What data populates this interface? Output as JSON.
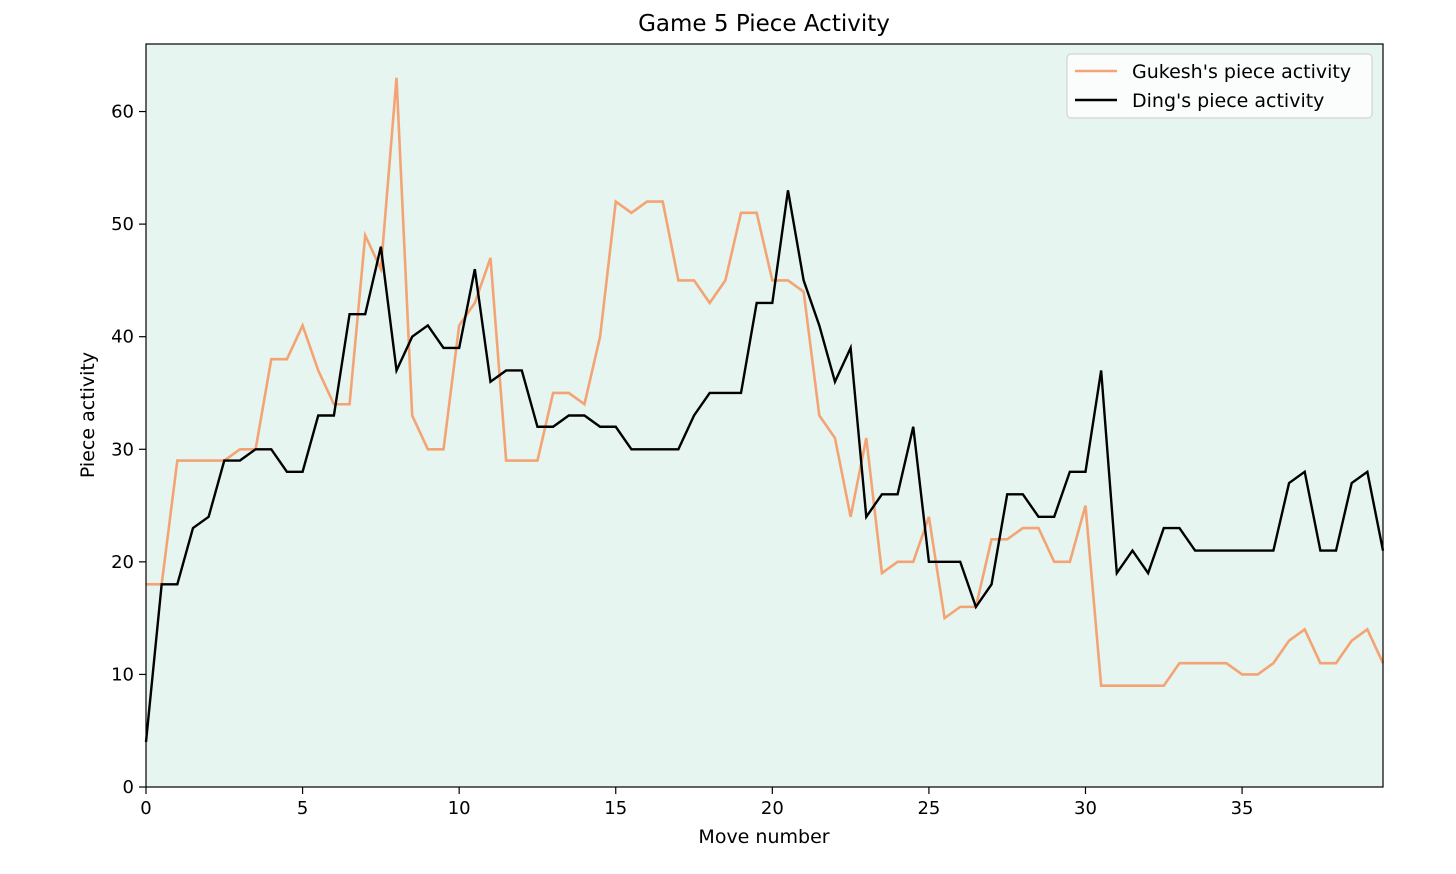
{
  "chart_data": {
    "type": "line",
    "title": "Game 5 Piece Activity",
    "xlabel": "Move number",
    "ylabel": "Piece activity",
    "xlim": [
      0,
      39.5
    ],
    "ylim": [
      0,
      66
    ],
    "xticks": [
      0,
      5,
      10,
      15,
      20,
      25,
      30,
      35
    ],
    "yticks": [
      0,
      10,
      20,
      30,
      40,
      50,
      60
    ],
    "grid": false,
    "legend_position": "top-right",
    "background_color": "#e6f5ef",
    "x": [
      0,
      0.5,
      1,
      1.5,
      2,
      2.5,
      3,
      3.5,
      4,
      4.5,
      5,
      5.5,
      6,
      6.5,
      7,
      7.5,
      8,
      8.5,
      9,
      9.5,
      10,
      10.5,
      11,
      11.5,
      12,
      12.5,
      13,
      13.5,
      14,
      14.5,
      15,
      15.5,
      16,
      16.5,
      17,
      17.5,
      18,
      18.5,
      19,
      19.5,
      20,
      20.5,
      21,
      21.5,
      22,
      22.5,
      23,
      23.5,
      24,
      24.5,
      25,
      25.5,
      26,
      26.5,
      27,
      27.5,
      28,
      28.5,
      29,
      29.5,
      30,
      30.5,
      31,
      31.5,
      32,
      32.5,
      33,
      33.5,
      34,
      34.5,
      35,
      35.5,
      36,
      36.5,
      37,
      37.5,
      38,
      38.5,
      39,
      39.5
    ],
    "series": [
      {
        "name": "Gukesh's piece activity",
        "color": "#f4a474",
        "values": [
          18,
          18,
          29,
          29,
          29,
          29,
          30,
          30,
          38,
          38,
          41,
          37,
          34,
          34,
          49,
          46,
          63,
          33,
          30,
          30,
          41,
          43,
          47,
          29,
          29,
          29,
          35,
          35,
          34,
          40,
          52,
          51,
          52,
          52,
          45,
          45,
          43,
          45,
          51,
          51,
          45,
          45,
          44,
          33,
          31,
          24,
          31,
          19,
          20,
          20,
          24,
          15,
          16,
          16,
          22,
          22,
          23,
          23,
          20,
          20,
          25,
          9,
          9,
          9,
          9,
          9,
          11,
          11,
          11,
          11,
          10,
          10,
          11,
          13,
          14,
          11,
          11,
          13,
          14,
          11
        ]
      },
      {
        "name": "Ding's piece activity",
        "color": "#000000",
        "values": [
          4,
          18,
          18,
          23,
          24,
          29,
          29,
          30,
          30,
          28,
          28,
          33,
          33,
          42,
          42,
          48,
          37,
          40,
          41,
          39,
          39,
          46,
          36,
          37,
          37,
          32,
          32,
          33,
          33,
          32,
          32,
          30,
          30,
          30,
          30,
          33,
          35,
          35,
          35,
          43,
          43,
          53,
          45,
          41,
          36,
          39,
          24,
          26,
          26,
          32,
          20,
          20,
          20,
          16,
          18,
          26,
          26,
          24,
          24,
          28,
          28,
          37,
          19,
          21,
          19,
          23,
          23,
          21,
          21,
          21,
          21,
          21,
          21,
          27,
          28,
          21,
          21,
          27,
          28,
          21
        ]
      }
    ]
  }
}
